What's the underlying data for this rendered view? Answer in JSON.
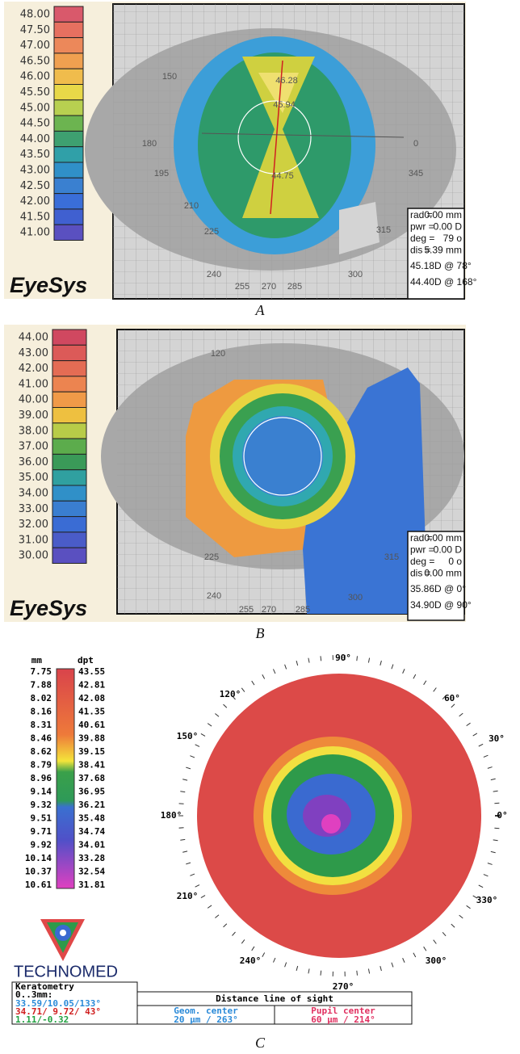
{
  "panel_a": {
    "caption": "A",
    "logo": "EyeSys",
    "scale_labels": [
      "48.00",
      "47.50",
      "47.00",
      "46.50",
      "46.00",
      "45.50",
      "45.00",
      "44.50",
      "44.00",
      "43.50",
      "43.00",
      "42.50",
      "42.00",
      "41.50",
      "41.00"
    ],
    "angle_labels": [
      "150",
      "180",
      "195",
      "210",
      "225",
      "240",
      "255",
      "270",
      "285",
      "300",
      "315",
      "345",
      "0"
    ],
    "map_labels": [
      "46.28",
      "45.94",
      "44.75"
    ],
    "info_rows": [
      [
        "rad =",
        "0.00 mm"
      ],
      [
        "pwr =",
        "0.00 D"
      ],
      [
        "deg =",
        "79 o"
      ],
      [
        "dis =",
        "5.39 mm"
      ]
    ],
    "info_lines": [
      "45.18D @ 78°",
      "44.40D @ 168°"
    ]
  },
  "panel_b": {
    "caption": "B",
    "logo": "EyeSys",
    "scale_labels": [
      "44.00",
      "43.00",
      "42.00",
      "41.00",
      "40.00",
      "39.00",
      "38.00",
      "37.00",
      "36.00",
      "35.00",
      "34.00",
      "33.00",
      "32.00",
      "31.00",
      "30.00"
    ],
    "angle_labels": [
      "120",
      "225",
      "240",
      "255",
      "270",
      "285",
      "300",
      "315"
    ],
    "info_rows": [
      [
        "rad =",
        "0.00 mm"
      ],
      [
        "pwr =",
        "0.00 D"
      ],
      [
        "deg =",
        "0 o"
      ],
      [
        "dis =",
        "0.00 mm"
      ]
    ],
    "info_lines": [
      "35.86D @ 0°",
      "34.90D @ 90°"
    ]
  },
  "panel_c": {
    "caption": "C",
    "mm_header": "mm",
    "dpt_header": "dpt",
    "mm_labels": [
      "7.75",
      "7.88",
      "8.02",
      "8.16",
      "8.31",
      "8.46",
      "8.62",
      "8.79",
      "8.96",
      "9.14",
      "9.32",
      "9.51",
      "9.71",
      "9.92",
      "10.14",
      "10.37",
      "10.61"
    ],
    "dpt_labels": [
      "43.55",
      "42.81",
      "42.08",
      "41.35",
      "40.61",
      "39.88",
      "39.15",
      "38.41",
      "37.68",
      "36.95",
      "36.21",
      "35.48",
      "34.74",
      "34.01",
      "33.28",
      "32.54",
      "31.81"
    ],
    "angle_labels": [
      "90°",
      "60°",
      "30°",
      "0°",
      "330°",
      "300°",
      "270°",
      "240°",
      "210°",
      "180°",
      "150°",
      "120°"
    ],
    "logo": "TECHNOMED",
    "keratometry": {
      "title": "Keratometry",
      "range": "0..3mm:",
      "lines": [
        "33.59/10.05/133°",
        "34.71/ 9.72/ 43°",
        "1.11/-0.32"
      ]
    },
    "line_of_sight": {
      "title": "Distance line of sight",
      "columns": [
        {
          "label": "Geom. center",
          "value": "20 µm / 263°"
        },
        {
          "label": "Pupil center",
          "value": "60 µm / 214°"
        }
      ]
    }
  }
}
